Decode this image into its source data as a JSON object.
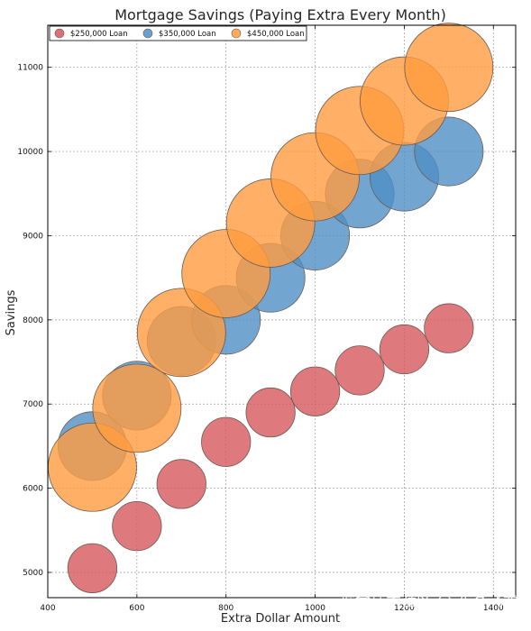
{
  "chart_data": {
    "type": "scatter",
    "title": "Mortgage Savings (Paying Extra Every Month)",
    "xlabel": "Extra Dollar Amount",
    "ylabel": "Savings",
    "xlim": [
      400,
      1450
    ],
    "ylim": [
      4700,
      11500
    ],
    "xticks": [
      400,
      600,
      800,
      1000,
      1200,
      1400
    ],
    "yticks": [
      5000,
      6000,
      7000,
      8000,
      9000,
      10000,
      11000
    ],
    "xtick_labels": [
      "400",
      "600",
      "800",
      "1000",
      "1200",
      "1400"
    ],
    "ytick_labels": [
      "5000",
      "6000",
      "7000",
      "8000",
      "9000",
      "10000",
      "11000"
    ],
    "grid": true,
    "legend_position": "top-left",
    "series": [
      {
        "name": "$250,000 Loan",
        "color": "#d6575d",
        "x": [
          500,
          600,
          700,
          800,
          900,
          1000,
          1100,
          1200,
          1300
        ],
        "y": [
          5050,
          5550,
          6050,
          6550,
          6900,
          7150,
          7400,
          7650,
          7900
        ],
        "sizes": [
          250,
          250,
          250,
          250,
          250,
          250,
          250,
          250,
          250
        ]
      },
      {
        "name": "$350,000 Loan",
        "color": "#4f8fc4",
        "x": [
          500,
          600,
          700,
          800,
          900,
          1000,
          1100,
          1200,
          1300
        ],
        "y": [
          6500,
          7100,
          7750,
          8000,
          8500,
          9000,
          9500,
          9700,
          10000
        ],
        "sizes": [
          350,
          350,
          350,
          350,
          350,
          350,
          350,
          350,
          350
        ]
      },
      {
        "name": "$450,000 Loan",
        "color": "#ff9c40",
        "x": [
          500,
          600,
          700,
          800,
          900,
          1000,
          1100,
          1200,
          1300
        ],
        "y": [
          6250,
          6950,
          7850,
          8550,
          9150,
          9700,
          10250,
          10600,
          11000
        ],
        "sizes": [
          450,
          450,
          450,
          450,
          450,
          450,
          450,
          450,
          450
        ]
      }
    ]
  },
  "watermark": "掘金技术社区 @ 布客飞龙"
}
